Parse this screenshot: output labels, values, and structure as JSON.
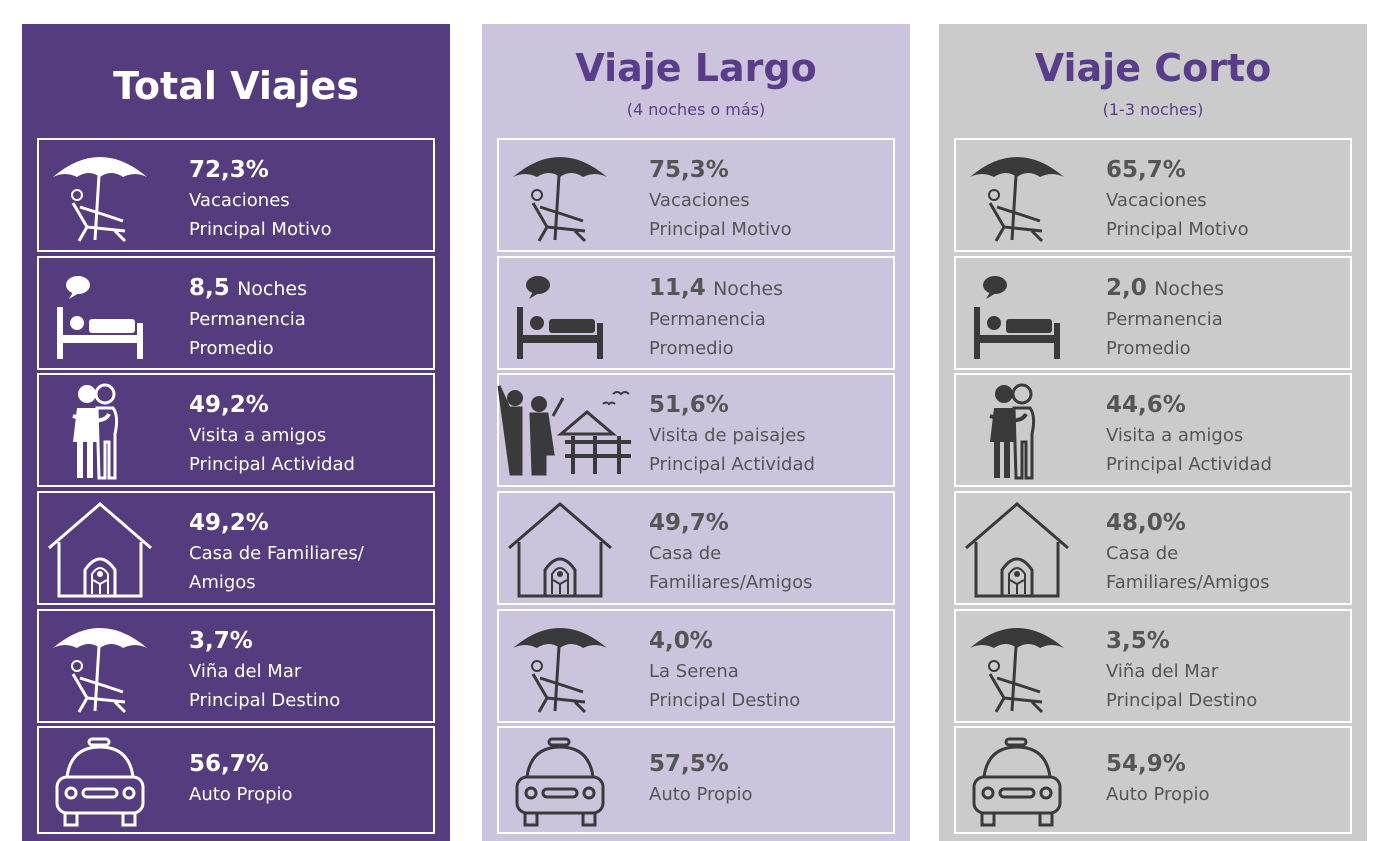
{
  "columns": [
    {
      "title": "Total Viajes",
      "items": [
        {
          "value": "72,3%",
          "lines": [
            "Vacaciones",
            "Principal Motivo"
          ]
        },
        {
          "value": "8,5",
          "unit": "Noches",
          "lines": [
            "Permanencia",
            "Promedio"
          ]
        },
        {
          "value": "49,2%",
          "lines": [
            "Visita a amigos",
            "Principal Actividad"
          ]
        },
        {
          "value": "49,2%",
          "lines": [
            "Casa de Familiares/",
            "Amigos"
          ]
        },
        {
          "value": "3,7%",
          "lines": [
            "Viña del Mar",
            "Principal Destino"
          ]
        },
        {
          "value": "56,7%",
          "lines": [
            "Auto Propio"
          ]
        }
      ]
    },
    {
      "title": "Viaje Largo",
      "subtitle": "(4 noches o más)",
      "items": [
        {
          "value": "75,3%",
          "lines": [
            "Vacaciones",
            "Principal Motivo"
          ]
        },
        {
          "value": "11,4",
          "unit": "Noches",
          "lines": [
            "Permanencia",
            "Promedio"
          ]
        },
        {
          "value": "51,6%",
          "lines": [
            "Visita de paisajes",
            "Principal Actividad"
          ]
        },
        {
          "value": "49,7%",
          "lines": [
            "Casa de",
            "Familiares/Amigos"
          ]
        },
        {
          "value": "4,0%",
          "lines": [
            "La Serena",
            "Principal Destino"
          ]
        },
        {
          "value": "57,5%",
          "lines": [
            "Auto Propio"
          ]
        }
      ]
    },
    {
      "title": "Viaje Corto",
      "subtitle": "(1-3 noches)",
      "items": [
        {
          "value": "65,7%",
          "lines": [
            "Vacaciones",
            "Principal Motivo"
          ]
        },
        {
          "value": "2,0",
          "unit": "Noches",
          "lines": [
            "Permanencia",
            "Promedio"
          ]
        },
        {
          "value": "44,6%",
          "lines": [
            "Visita a amigos",
            "Principal Actividad"
          ]
        },
        {
          "value": "48,0%",
          "lines": [
            "Casa de",
            "Familiares/Amigos"
          ]
        },
        {
          "value": "3,5%",
          "lines": [
            "Viña del Mar",
            "Principal Destino"
          ]
        },
        {
          "value": "54,9%",
          "lines": [
            "Auto Propio"
          ]
        }
      ]
    }
  ]
}
